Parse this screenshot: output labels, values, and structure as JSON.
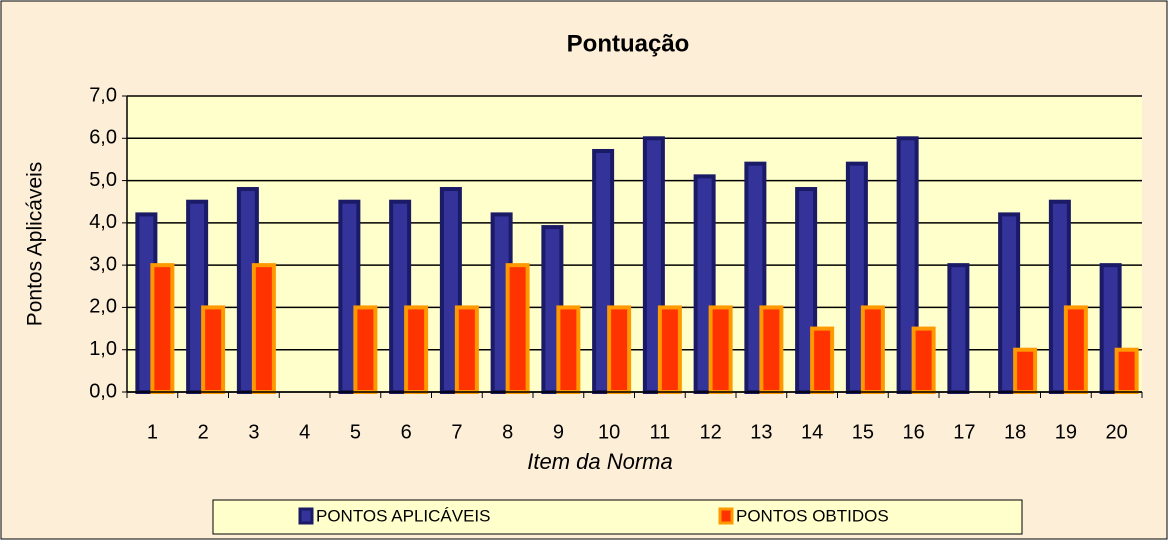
{
  "chart_data": {
    "type": "bar",
    "title": "Pontuação",
    "xlabel": "Item da Norma",
    "ylabel": "Pontos Aplicáveis",
    "categories": [
      "1",
      "2",
      "3",
      "4",
      "5",
      "6",
      "7",
      "8",
      "9",
      "10",
      "11",
      "12",
      "13",
      "14",
      "15",
      "16",
      "17",
      "18",
      "19",
      "20"
    ],
    "series": [
      {
        "name": "PONTOS APLICÁVEIS",
        "color": "#333399",
        "values": [
          4.2,
          4.5,
          4.8,
          0,
          4.5,
          4.5,
          4.8,
          4.2,
          3.9,
          5.7,
          6.0,
          5.1,
          5.4,
          4.8,
          5.4,
          6.0,
          3.0,
          4.2,
          4.5,
          3.0
        ]
      },
      {
        "name": "PONTOS OBTIDOS",
        "color": "#ff3300",
        "values": [
          3.0,
          2.0,
          3.0,
          0,
          2.0,
          2.0,
          2.0,
          3.0,
          2.0,
          2.0,
          2.0,
          2.0,
          2.0,
          1.5,
          2.0,
          1.5,
          0,
          1.0,
          2.0,
          1.0
        ]
      }
    ],
    "ylim": [
      0,
      7
    ],
    "yticks": [
      {
        "value": 0,
        "label": "0,0"
      },
      {
        "value": 1,
        "label": "1,0"
      },
      {
        "value": 2,
        "label": "2,0"
      },
      {
        "value": 3,
        "label": "3,0"
      },
      {
        "value": 4,
        "label": "4,0"
      },
      {
        "value": 5,
        "label": "5,0"
      },
      {
        "value": 6,
        "label": "6,0"
      },
      {
        "value": 7,
        "label": "7,0"
      }
    ],
    "grid": true,
    "legend": "bottom"
  }
}
